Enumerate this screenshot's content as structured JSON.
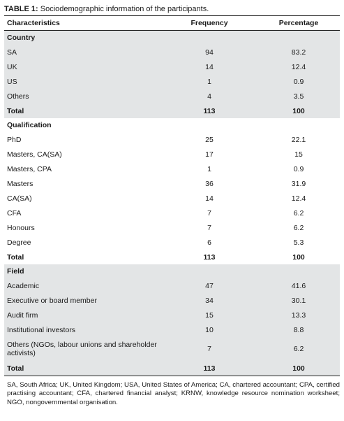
{
  "table": {
    "caption_label": "TABLE 1:",
    "caption_text": " Sociodemographic information of the participants.",
    "headers": [
      "Characteristics",
      "Frequency",
      "Percentage"
    ],
    "country": {
      "heading": "Country",
      "rows": [
        {
          "label": "SA",
          "freq": "94",
          "pct": "83.2"
        },
        {
          "label": "UK",
          "freq": "14",
          "pct": "12.4"
        },
        {
          "label": "US",
          "freq": "1",
          "pct": "0.9"
        },
        {
          "label": "Others",
          "freq": "4",
          "pct": "3.5"
        }
      ],
      "total": {
        "label": "Total",
        "freq": "113",
        "pct": "100"
      }
    },
    "qualification": {
      "heading": "Qualification",
      "rows": [
        {
          "label": "PhD",
          "freq": "25",
          "pct": "22.1"
        },
        {
          "label": "Masters, CA(SA)",
          "freq": "17",
          "pct": "15"
        },
        {
          "label": "Masters, CPA",
          "freq": "1",
          "pct": "0.9"
        },
        {
          "label": "Masters",
          "freq": "36",
          "pct": "31.9"
        },
        {
          "label": "CA(SA)",
          "freq": "14",
          "pct": "12.4"
        },
        {
          "label": "CFA",
          "freq": "7",
          "pct": "6.2"
        },
        {
          "label": "Honours",
          "freq": "7",
          "pct": "6.2"
        },
        {
          "label": "Degree",
          "freq": "6",
          "pct": "5.3"
        }
      ],
      "total": {
        "label": "Total",
        "freq": "113",
        "pct": "100"
      }
    },
    "field": {
      "heading": "Field",
      "rows": [
        {
          "label": "Academic",
          "freq": "47",
          "pct": "41.6"
        },
        {
          "label": "Executive or board member",
          "freq": "34",
          "pct": "30.1"
        },
        {
          "label": "Audit firm",
          "freq": "15",
          "pct": "13.3"
        },
        {
          "label": "Institutional investors",
          "freq": "10",
          "pct": "8.8"
        },
        {
          "label": "Others (NGOs, labour unions and shareholder activists)",
          "freq": "7",
          "pct": "6.2"
        }
      ],
      "total": {
        "label": "Total",
        "freq": "113",
        "pct": "100"
      }
    },
    "footnote": "SA, South Africa; UK, United Kingdom; USA, United States of America; CA, chartered accountant; CPA, certified practising accountant; CFA, chartered financial analyst; KRNW, knowledge resource nomination worksheet; NGO, nongovernmental organisation."
  }
}
